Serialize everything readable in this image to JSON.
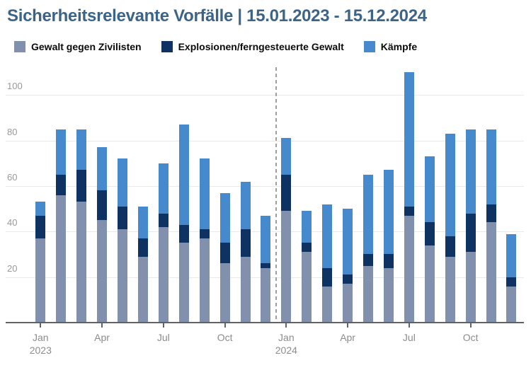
{
  "title": "Sicherheitsrelevante Vorfälle | 15.01.2023 - 15.12.2024",
  "legend": {
    "items": [
      {
        "label": "Gewalt gegen Zivilisten",
        "color": "#8090ad"
      },
      {
        "label": "Explosionen/ferngesteuerte Gewalt",
        "color": "#0e3262"
      },
      {
        "label": "Kämpfe",
        "color": "#4689cc"
      }
    ]
  },
  "chart_data": {
    "type": "bar",
    "stacked": true,
    "title": "Sicherheitsrelevante Vorfälle | 15.01.2023 - 15.12.2024",
    "categories": [
      "2023-01",
      "2023-02",
      "2023-03",
      "2023-04",
      "2023-05",
      "2023-06",
      "2023-07",
      "2023-08",
      "2023-09",
      "2023-10",
      "2023-11",
      "2023-12",
      "2024-01",
      "2024-02",
      "2024-03",
      "2024-04",
      "2024-05",
      "2024-06",
      "2024-07",
      "2024-08",
      "2024-09",
      "2024-10",
      "2024-11",
      "2024-12"
    ],
    "series": [
      {
        "name": "Gewalt gegen Zivilisten",
        "color": "#8090ad",
        "values": [
          37,
          56,
          53,
          45,
          41,
          29,
          42,
          35,
          37,
          26,
          29,
          24,
          49,
          31,
          16,
          17,
          25,
          24,
          47,
          34,
          29,
          31,
          44,
          16
        ]
      },
      {
        "name": "Explosionen/ferngesteuerte Gewalt",
        "color": "#0e3262",
        "values": [
          10,
          9,
          14,
          13,
          10,
          8,
          6,
          8,
          4,
          9,
          12,
          2,
          16,
          4,
          8,
          4,
          5,
          6,
          4,
          10,
          9,
          17,
          8,
          4
        ]
      },
      {
        "name": "Kämpfe",
        "color": "#4689cc",
        "values": [
          6,
          20,
          18,
          19,
          21,
          14,
          22,
          44,
          31,
          22,
          21,
          21,
          16,
          14,
          28,
          29,
          35,
          37,
          59,
          29,
          45,
          37,
          33,
          19
        ]
      }
    ],
    "totals": [
      53,
      85,
      85,
      77,
      72,
      51,
      70,
      87,
      72,
      57,
      62,
      47,
      81,
      49,
      52,
      50,
      65,
      67,
      110,
      73,
      83,
      85,
      85,
      39
    ],
    "y_axis": {
      "ticks": [
        20,
        40,
        60,
        80,
        100
      ],
      "ylim": [
        0,
        112
      ],
      "grid": true
    },
    "x_axis": {
      "ticks": [
        {
          "index": 0,
          "label": "Jan",
          "year": "2023"
        },
        {
          "index": 3,
          "label": "Apr"
        },
        {
          "index": 6,
          "label": "Jul"
        },
        {
          "index": 9,
          "label": "Oct"
        },
        {
          "index": 12,
          "label": "Jan",
          "year": "2024"
        },
        {
          "index": 15,
          "label": "Apr"
        },
        {
          "index": 18,
          "label": "Jul"
        },
        {
          "index": 21,
          "label": "Oct"
        }
      ]
    },
    "separator_after_index": 11,
    "legend_position": "top"
  }
}
